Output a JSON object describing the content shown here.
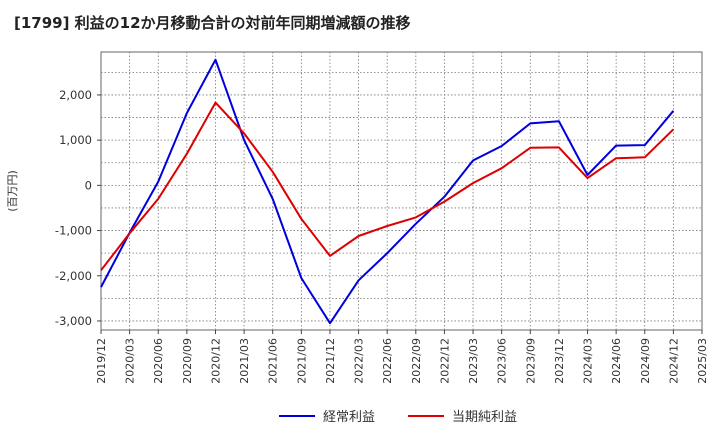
{
  "chart_data": {
    "type": "line",
    "title": "[1799]  利益の12か月移動合計の対前年同期増減額の推移",
    "ylabel": "(百万円)",
    "xlabel": "",
    "ylim": [
      -3200,
      2950
    ],
    "yticks": [
      2000,
      1000,
      0,
      -1000,
      -2000,
      -3000
    ],
    "ytick_labels": [
      "2,000",
      "1,000",
      "0",
      "-1,000",
      "-2,000",
      "-3,000"
    ],
    "categories": [
      "2019/12",
      "2020/03",
      "2020/06",
      "2020/09",
      "2020/12",
      "2021/03",
      "2021/06",
      "2021/09",
      "2021/12",
      "2022/03",
      "2022/06",
      "2022/09",
      "2022/12",
      "2023/03",
      "2023/06",
      "2023/09",
      "2023/12",
      "2024/03",
      "2024/06",
      "2024/09",
      "2024/12",
      "2025/03"
    ],
    "grid": true,
    "legend_position": "bottom",
    "series": [
      {
        "name": "経常利益",
        "color": "#0000dd",
        "values": [
          -2250,
          -1050,
          80,
          1600,
          2780,
          1000,
          -300,
          -2050,
          -3050,
          -2100,
          -1500,
          -850,
          -250,
          550,
          870,
          1370,
          1420,
          230,
          880,
          890,
          1650,
          null
        ]
      },
      {
        "name": "当期純利益",
        "color": "#dd0000",
        "values": [
          -1880,
          -1060,
          -300,
          700,
          1830,
          1150,
          300,
          -740,
          -1560,
          -1120,
          -900,
          -710,
          -360,
          50,
          380,
          830,
          840,
          160,
          600,
          620,
          1240,
          null
        ]
      }
    ]
  }
}
